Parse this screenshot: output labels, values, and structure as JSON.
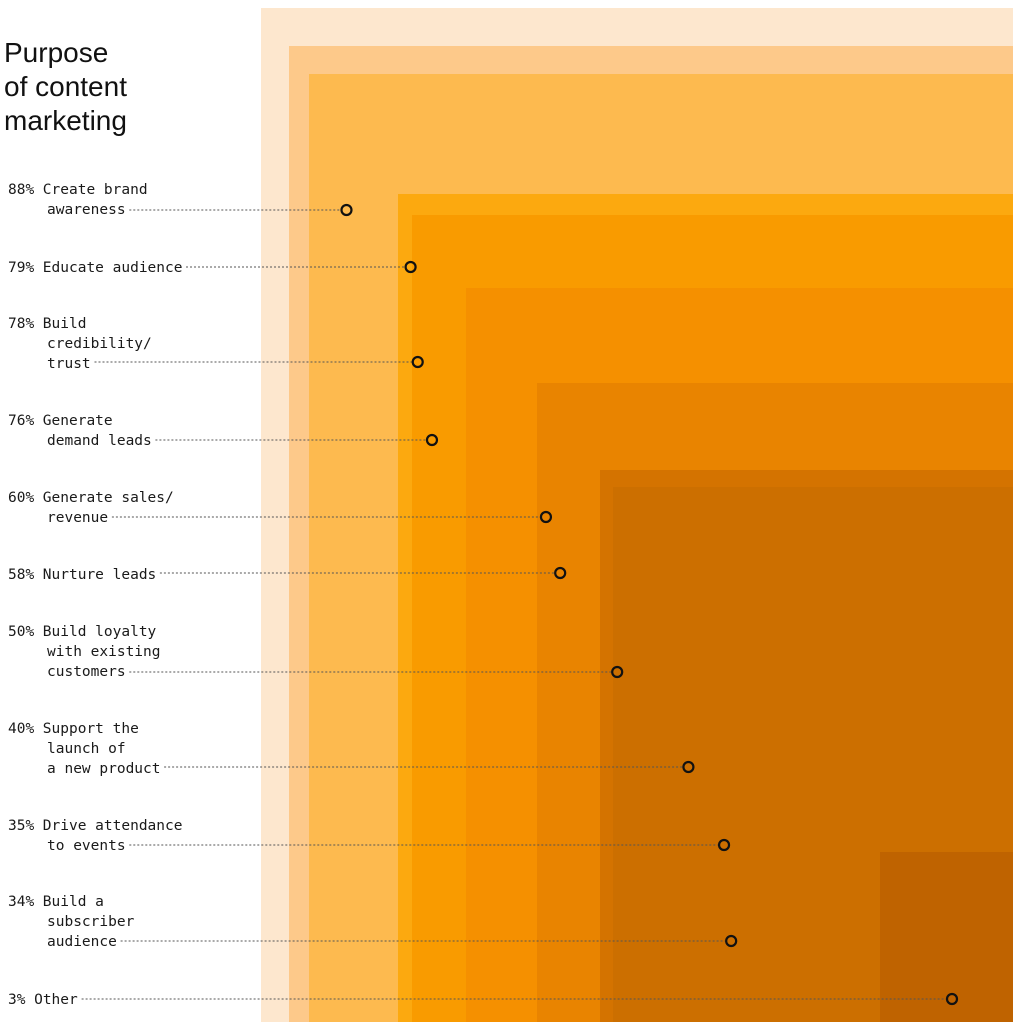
{
  "chart_data": {
    "type": "area",
    "title": [
      "Purpose",
      "of content",
      "marketing"
    ],
    "unit": "%",
    "categories": [
      {
        "pct": "88%",
        "value": 88,
        "label": [
          "Create brand",
          "awareness"
        ]
      },
      {
        "pct": "79%",
        "value": 79,
        "label": [
          "Educate audience"
        ]
      },
      {
        "pct": "78%",
        "value": 78,
        "label": [
          "Build",
          "credibility/",
          "trust"
        ]
      },
      {
        "pct": "76%",
        "value": 76,
        "label": [
          "Generate",
          "demand leads"
        ]
      },
      {
        "pct": "60%",
        "value": 60,
        "label": [
          "Generate sales/",
          "revenue"
        ]
      },
      {
        "pct": "58%",
        "value": 58,
        "label": [
          "Nurture leads"
        ]
      },
      {
        "pct": "50%",
        "value": 50,
        "label": [
          "Build loyalty",
          "with existing",
          "customers"
        ]
      },
      {
        "pct": "40%",
        "value": 40,
        "label": [
          "Support the",
          "launch of",
          "a new product"
        ]
      },
      {
        "pct": "35%",
        "value": 35,
        "label": [
          "Drive attendance",
          "to events"
        ]
      },
      {
        "pct": "34%",
        "value": 34,
        "label": [
          "Build a",
          "subscriber",
          "audience"
        ]
      },
      {
        "pct": "3%",
        "value": 3,
        "label": [
          "Other"
        ]
      }
    ],
    "colors": {
      "background_square": "#fde7ce",
      "squares": [
        "#fdc98a",
        "#fdba4f",
        "#fca90f",
        "#f99b00",
        "#f59000",
        "#e98400",
        "#d47300",
        "#cc6f00",
        "#bf6300"
      ],
      "leader_line": "#555555",
      "marker_stroke": "#111111",
      "text": "#1a1a1a"
    }
  }
}
